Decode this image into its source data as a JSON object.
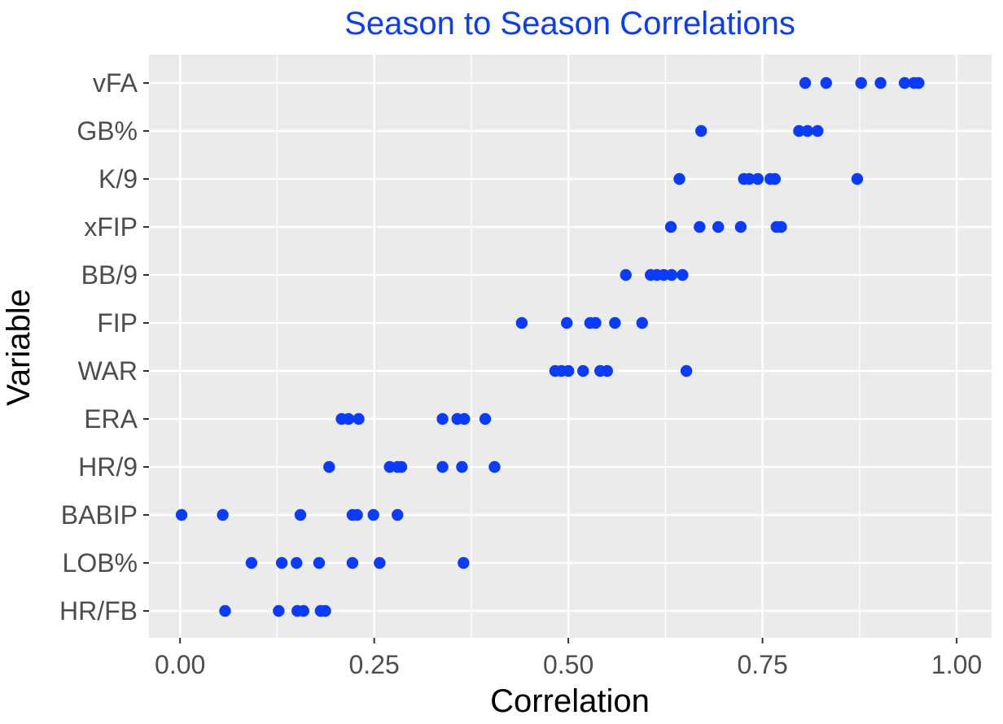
{
  "chart_data": {
    "type": "scatter",
    "title": "Season to Season Correlations",
    "xlabel": "Correlation",
    "ylabel": "Variable",
    "xlim": [
      -0.04,
      1.045
    ],
    "x_ticks": [
      0.0,
      0.25,
      0.5,
      0.75,
      1.0
    ],
    "x_tick_labels": [
      "0.00",
      "0.25",
      "0.50",
      "0.75",
      "1.00"
    ],
    "grid": true,
    "colors": {
      "points": "#0a3cff",
      "panel": "#ebebeb",
      "grid": "#ffffff",
      "title": "#0a3cff"
    },
    "categories": [
      "HR/FB",
      "LOB%",
      "BABIP",
      "HR/9",
      "ERA",
      "WAR",
      "FIP",
      "BB/9",
      "xFIP",
      "K/9",
      "GB%",
      "vFA"
    ],
    "points": [
      {
        "category": "vFA",
        "x": [
          0.805,
          0.832,
          0.877,
          0.902,
          0.933,
          0.945,
          0.951
        ]
      },
      {
        "category": "GB%",
        "x": [
          0.671,
          0.797,
          0.808,
          0.821
        ]
      },
      {
        "category": "K/9",
        "x": [
          0.643,
          0.726,
          0.733,
          0.744,
          0.76,
          0.766,
          0.872
        ]
      },
      {
        "category": "xFIP",
        "x": [
          0.632,
          0.669,
          0.693,
          0.722,
          0.768,
          0.774
        ]
      },
      {
        "category": "BB/9",
        "x": [
          0.574,
          0.606,
          0.614,
          0.623,
          0.633,
          0.647
        ]
      },
      {
        "category": "FIP",
        "x": [
          0.44,
          0.498,
          0.528,
          0.535,
          0.56,
          0.595
        ]
      },
      {
        "category": "WAR",
        "x": [
          0.483,
          0.491,
          0.5,
          0.519,
          0.541,
          0.55,
          0.652
        ]
      },
      {
        "category": "ERA",
        "x": [
          0.208,
          0.217,
          0.23,
          0.338,
          0.357,
          0.366,
          0.393
        ]
      },
      {
        "category": "HR/9",
        "x": [
          0.192,
          0.27,
          0.28,
          0.285,
          0.338,
          0.363,
          0.405
        ]
      },
      {
        "category": "BABIP",
        "x": [
          0.002,
          0.055,
          0.155,
          0.222,
          0.228,
          0.249,
          0.28
        ]
      },
      {
        "category": "LOB%",
        "x": [
          0.092,
          0.131,
          0.15,
          0.179,
          0.222,
          0.257,
          0.365
        ]
      },
      {
        "category": "HR/FB",
        "x": [
          0.058,
          0.127,
          0.151,
          0.159,
          0.181,
          0.187
        ]
      }
    ]
  }
}
